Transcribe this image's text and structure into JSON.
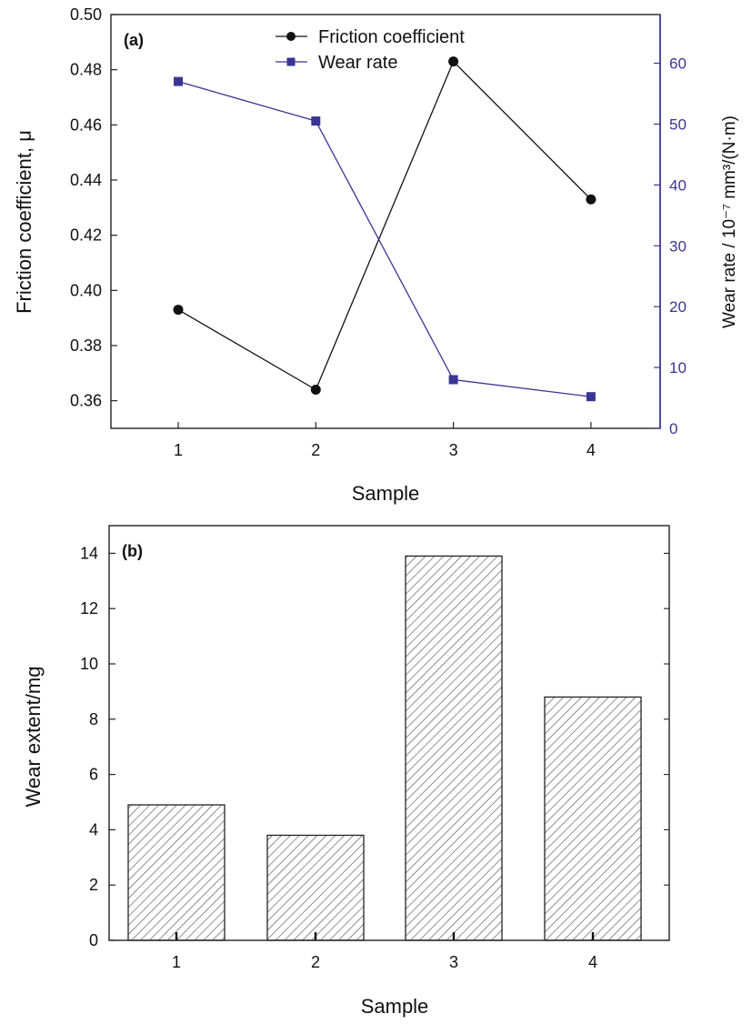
{
  "chart_data": [
    {
      "type": "line",
      "panel_label": "(a)",
      "x": [
        1,
        2,
        3,
        4
      ],
      "xlabel": "Sample",
      "ylabel": "Friction coefficient, μ",
      "ylim": [
        0.35,
        0.5
      ],
      "yticks": [
        "0.36",
        "0.38",
        "0.40",
        "0.42",
        "0.44",
        "0.46",
        "0.48",
        "0.50"
      ],
      "ylabel_right": "Wear rate / 10⁻⁷ mm³/(N·m)",
      "ylim_right": [
        0,
        68
      ],
      "yticks_right": [
        "0",
        "10",
        "20",
        "30",
        "40",
        "50",
        "60"
      ],
      "legend_position": "top-center",
      "series": [
        {
          "name": "Friction coefficient",
          "axis": "left",
          "values": [
            0.393,
            0.364,
            0.483,
            0.433
          ],
          "color": "#111111",
          "marker": "circle"
        },
        {
          "name": "Wear rate",
          "axis": "right",
          "values": [
            57,
            50.5,
            8,
            5.2
          ],
          "color": "#3a3595",
          "marker": "square"
        }
      ],
      "grid": false
    },
    {
      "type": "bar",
      "panel_label": "(b)",
      "categories": [
        "1",
        "2",
        "3",
        "4"
      ],
      "values": [
        4.9,
        3.8,
        13.9,
        8.8
      ],
      "xlabel": "Sample",
      "ylabel": "Wear extent/mg",
      "ylim": [
        0,
        15
      ],
      "yticks": [
        "0",
        "2",
        "4",
        "6",
        "8",
        "10",
        "12",
        "14"
      ],
      "bar_fill": "hatched",
      "grid": false
    }
  ]
}
